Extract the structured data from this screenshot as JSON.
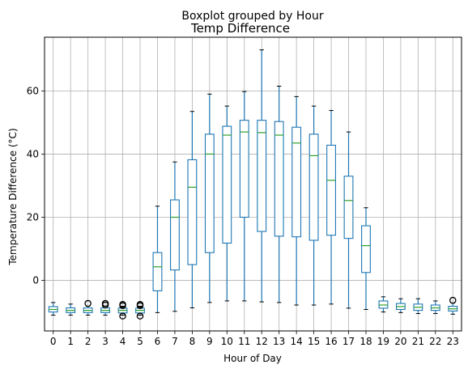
{
  "chart_data": {
    "type": "boxplot",
    "suptitle": "Boxplot grouped by Hour",
    "title": "Temp Difference",
    "xlabel": "Hour of Day",
    "ylabel": "Temperature Difference (°C)",
    "categories": [
      "0",
      "1",
      "2",
      "3",
      "4",
      "5",
      "6",
      "7",
      "8",
      "9",
      "10",
      "11",
      "12",
      "13",
      "14",
      "15",
      "16",
      "17",
      "18",
      "19",
      "20",
      "21",
      "22",
      "23"
    ],
    "ylim": [
      -16,
      77
    ],
    "yticks": [
      0,
      20,
      40,
      60
    ],
    "grid": true,
    "colors": {
      "box": "#1f77b4",
      "median": "#2ca02c",
      "outlier": "#000000",
      "grid": "#b0b0b0"
    },
    "boxes": [
      {
        "q1": -10,
        "median": -9.2,
        "q3": -8.3,
        "whislo": -11,
        "whishi": -7,
        "fliers": []
      },
      {
        "q1": -10.2,
        "median": -9.5,
        "q3": -8.7,
        "whislo": -11,
        "whishi": -7.5,
        "fliers": []
      },
      {
        "q1": -10.2,
        "median": -9.5,
        "q3": -8.7,
        "whislo": -11,
        "whishi": -8.2,
        "fliers": [
          -7.3
        ]
      },
      {
        "q1": -10.2,
        "median": -9.5,
        "q3": -8.7,
        "whislo": -11,
        "whishi": -8.2,
        "fliers": [
          -7.3,
          -7.8
        ]
      },
      {
        "q1": -10.3,
        "median": -9.5,
        "q3": -8.8,
        "whislo": -11,
        "whishi": -8.2,
        "fliers": [
          -7.6,
          -8.0,
          -11.3
        ]
      },
      {
        "q1": -10.3,
        "median": -9.5,
        "q3": -8.8,
        "whislo": -11,
        "whishi": -8.2,
        "fliers": [
          -7.6,
          -8.0,
          -11.3
        ]
      },
      {
        "q1": -3.3,
        "median": 4.3,
        "q3": 8.8,
        "whislo": -10.2,
        "whishi": 23.5,
        "fliers": []
      },
      {
        "q1": 3.3,
        "median": 20,
        "q3": 25.5,
        "whislo": -9.8,
        "whishi": 37.5,
        "fliers": []
      },
      {
        "q1": 5,
        "median": 29.5,
        "q3": 38.2,
        "whislo": -8.7,
        "whishi": 53.5,
        "fliers": []
      },
      {
        "q1": 8.8,
        "median": 40,
        "q3": 46.3,
        "whislo": -7,
        "whishi": 59,
        "fliers": []
      },
      {
        "q1": 11.8,
        "median": 46,
        "q3": 48.8,
        "whislo": -6.5,
        "whishi": 55.2,
        "fliers": []
      },
      {
        "q1": 20,
        "median": 47,
        "q3": 50.7,
        "whislo": -6.5,
        "whishi": 59.8,
        "fliers": []
      },
      {
        "q1": 15.5,
        "median": 46.8,
        "q3": 50.7,
        "whislo": -6.8,
        "whishi": 73,
        "fliers": []
      },
      {
        "q1": 14,
        "median": 46,
        "q3": 50.3,
        "whislo": -7,
        "whishi": 61.5,
        "fliers": []
      },
      {
        "q1": 13.8,
        "median": 43.5,
        "q3": 48.5,
        "whislo": -7.8,
        "whishi": 58.2,
        "fliers": []
      },
      {
        "q1": 12.7,
        "median": 39.5,
        "q3": 46.3,
        "whislo": -7.8,
        "whishi": 55.2,
        "fliers": []
      },
      {
        "q1": 14.3,
        "median": 31.7,
        "q3": 42.8,
        "whislo": -7.5,
        "whishi": 53.8,
        "fliers": []
      },
      {
        "q1": 13.3,
        "median": 25.3,
        "q3": 33,
        "whislo": -8.8,
        "whishi": 47,
        "fliers": []
      },
      {
        "q1": 2.5,
        "median": 11,
        "q3": 17.3,
        "whislo": -9.2,
        "whishi": 23,
        "fliers": []
      },
      {
        "q1": -8.8,
        "median": -7.8,
        "q3": -6.5,
        "whislo": -10,
        "whishi": -5.2,
        "fliers": []
      },
      {
        "q1": -9.2,
        "median": -8.3,
        "q3": -7.3,
        "whislo": -10.2,
        "whishi": -5.8,
        "fliers": []
      },
      {
        "q1": -9.5,
        "median": -8.5,
        "q3": -7.5,
        "whislo": -10.5,
        "whishi": -5.8,
        "fliers": []
      },
      {
        "q1": -9.5,
        "median": -8.7,
        "q3": -7.8,
        "whislo": -10.5,
        "whishi": -6.5,
        "fliers": []
      },
      {
        "q1": -9.7,
        "median": -9,
        "q3": -8.2,
        "whislo": -10.7,
        "whishi": -7.2,
        "fliers": [
          -6.3
        ]
      }
    ]
  }
}
